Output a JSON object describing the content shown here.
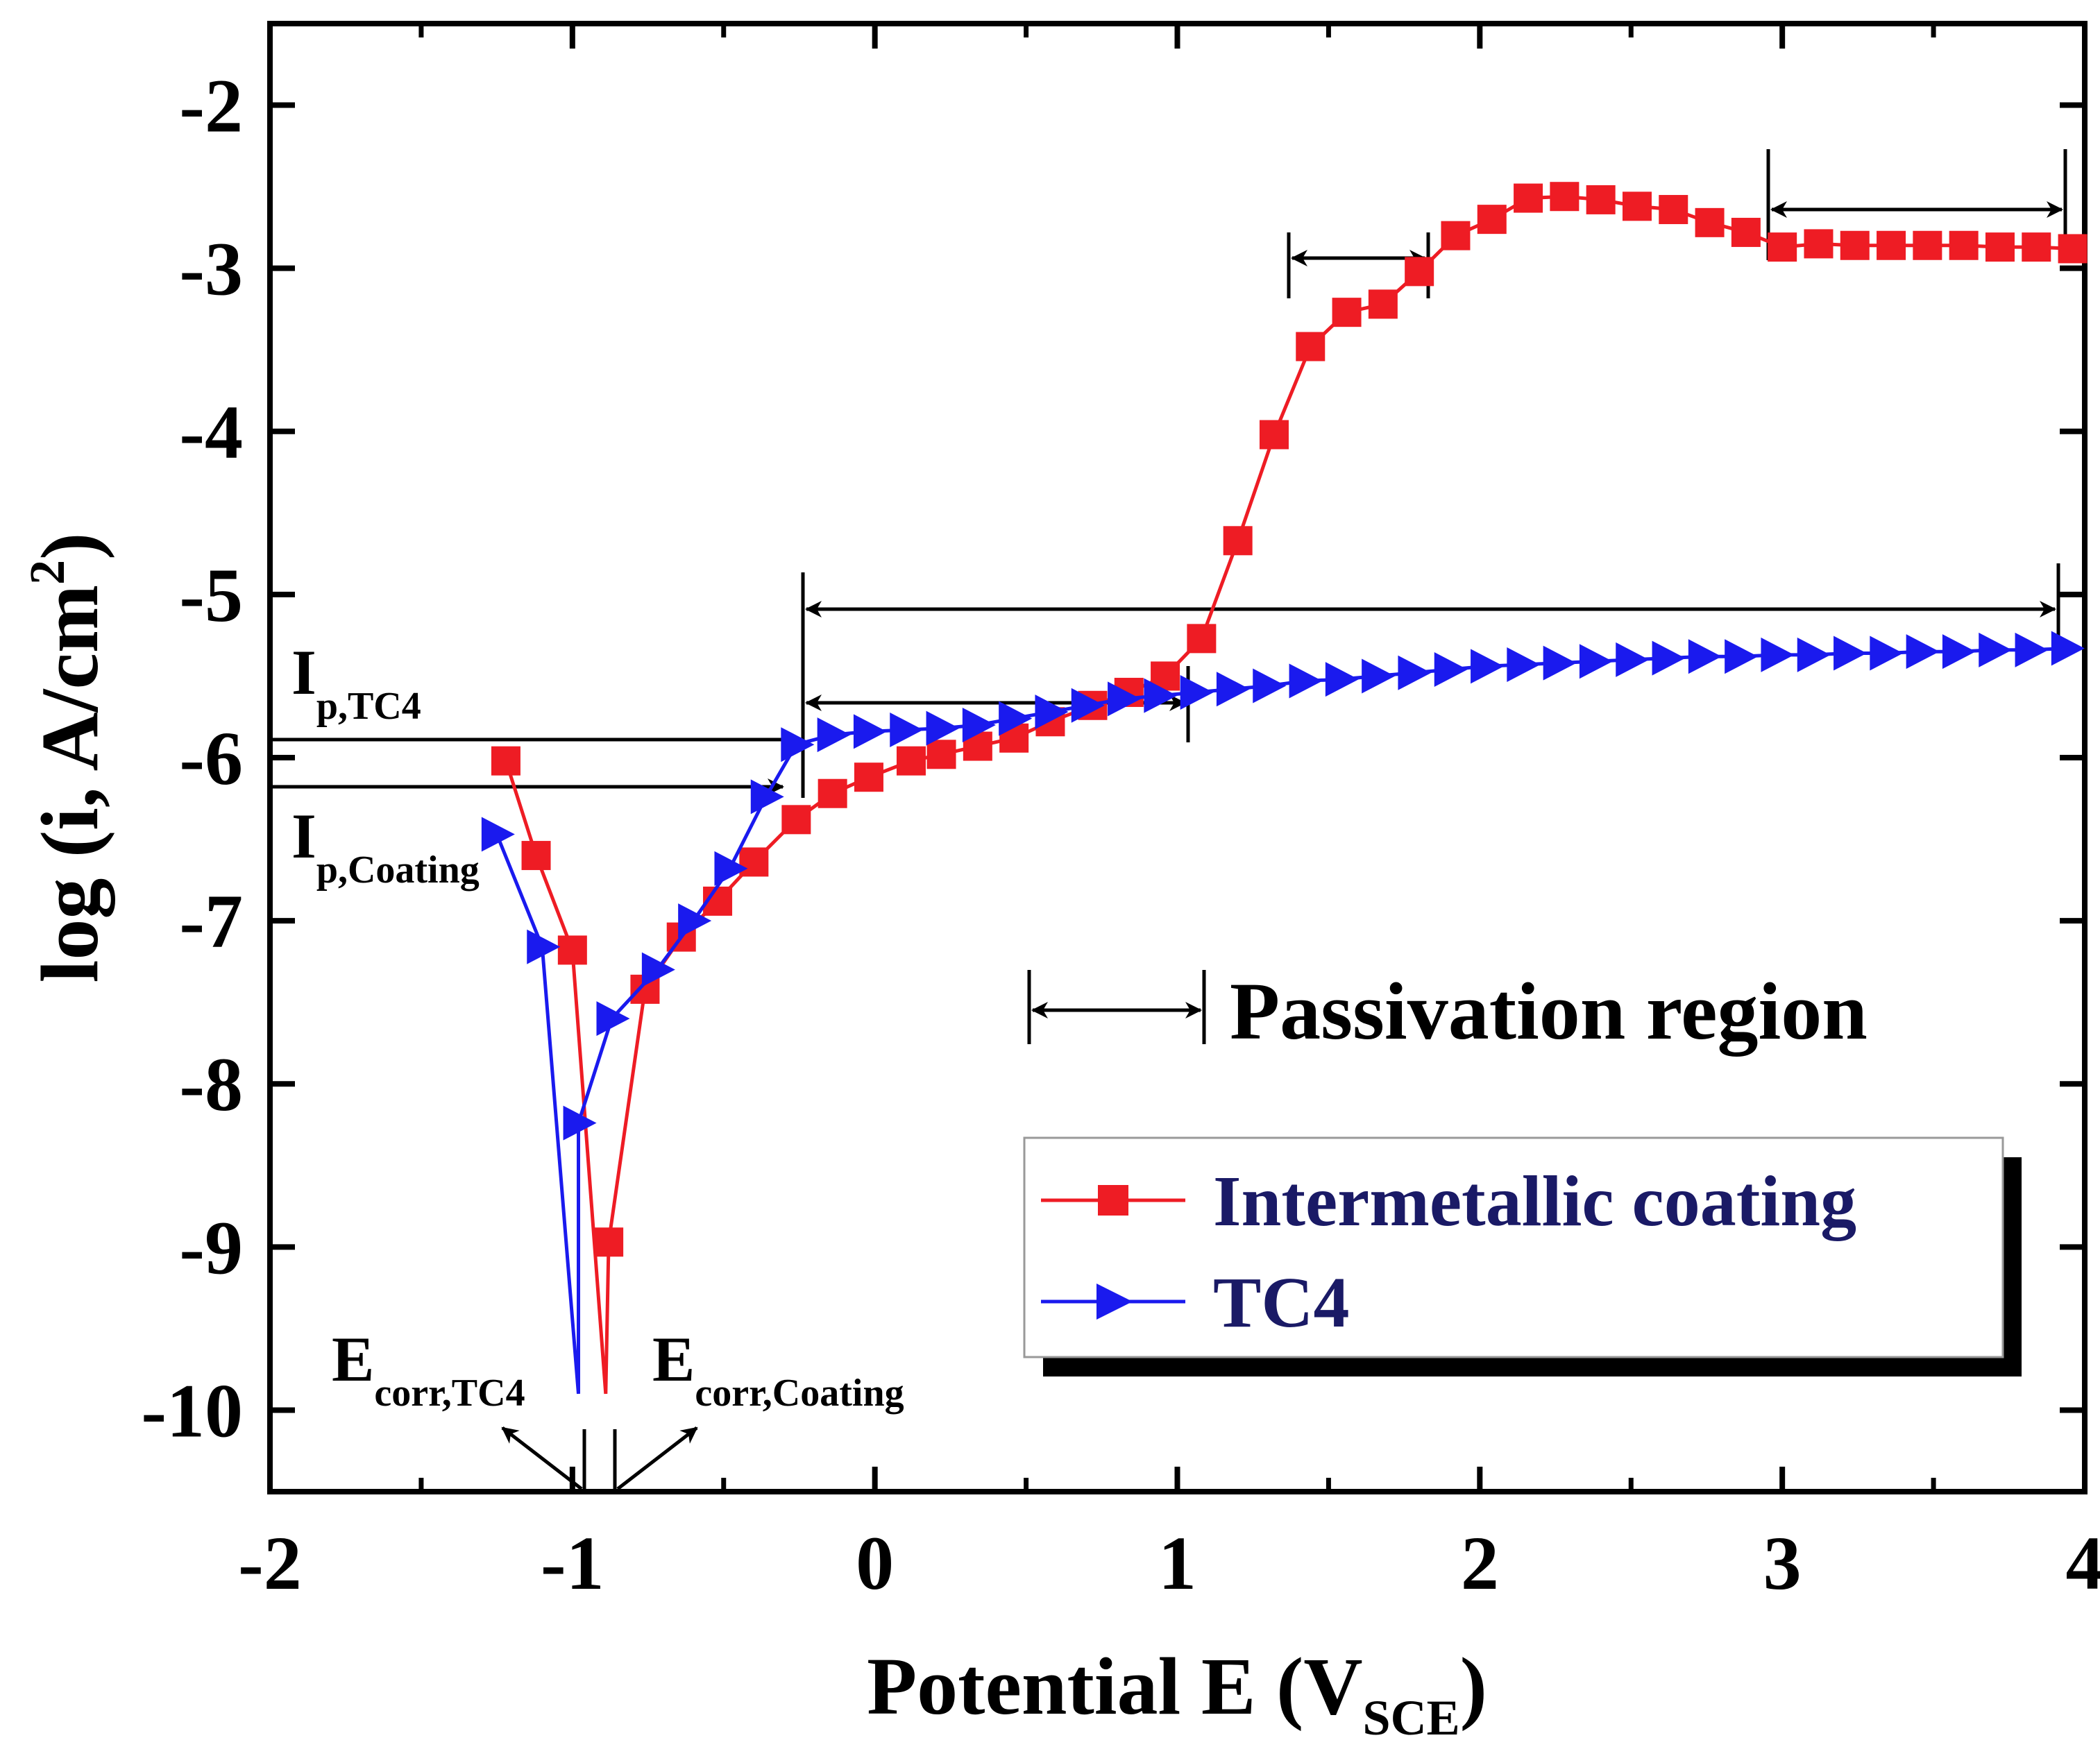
{
  "chart_data": {
    "type": "line",
    "title": "",
    "xlabel": {
      "main": "Potential E (V",
      "sub": "SCE",
      "close": ")"
    },
    "ylabel": {
      "main": "log (i, A/cm",
      "sup": "2",
      "close": ")"
    },
    "xlim": [
      -2,
      4
    ],
    "ylim": [
      -10.5,
      -1.5
    ],
    "xticks": [
      "-2",
      "-1",
      "0",
      "1",
      "2",
      "3",
      "4"
    ],
    "yticks": [
      "-2",
      "-3",
      "-4",
      "-5",
      "-6",
      "-7",
      "-8",
      "-9",
      "-10"
    ],
    "series": [
      {
        "name": "Intermetallic coating",
        "color": "#ee1c24",
        "marker": "square",
        "x": [
          -1.22,
          -1.12,
          -1.0,
          -0.88,
          -0.76,
          -0.64,
          -0.52,
          -0.4,
          -0.26,
          -0.14,
          -0.02,
          0.12,
          0.22,
          0.34,
          0.46,
          0.58,
          0.72,
          0.84,
          0.96,
          1.08,
          1.2,
          1.32,
          1.44,
          1.56,
          1.68,
          1.8,
          1.92,
          2.04,
          2.16,
          2.28,
          2.4,
          2.52,
          2.64,
          2.76,
          2.88,
          3.0,
          3.12,
          3.24,
          3.36,
          3.48,
          3.6,
          3.72,
          3.84,
          3.96
        ],
        "y": [
          -6.02,
          -6.6,
          -7.18,
          -8.97,
          -7.42,
          -7.1,
          -6.88,
          -6.64,
          -6.38,
          -6.22,
          -6.12,
          -6.02,
          -5.98,
          -5.93,
          -5.88,
          -5.78,
          -5.68,
          -5.6,
          -5.5,
          -5.27,
          -4.67,
          -4.02,
          -3.48,
          -3.27,
          -3.22,
          -3.02,
          -2.8,
          -2.7,
          -2.57,
          -2.56,
          -2.58,
          -2.62,
          -2.64,
          -2.72,
          -2.78,
          -2.87,
          -2.85,
          -2.86,
          -2.86,
          -2.86,
          -2.86,
          -2.87,
          -2.87,
          -2.88
        ]
      },
      {
        "name": "TC4",
        "color": "#1a1aee",
        "marker": "triangle-right",
        "x": [
          -1.25,
          -1.1,
          -0.98,
          -0.87,
          -0.72,
          -0.6,
          -0.48,
          -0.36,
          -0.26,
          -0.14,
          -0.02,
          0.1,
          0.22,
          0.34,
          0.46,
          0.58,
          0.7,
          0.82,
          0.94,
          1.06,
          1.18,
          1.3,
          1.42,
          1.54,
          1.66,
          1.78,
          1.9,
          2.02,
          2.14,
          2.26,
          2.38,
          2.5,
          2.62,
          2.74,
          2.86,
          2.98,
          3.1,
          3.22,
          3.34,
          3.46,
          3.58,
          3.7,
          3.82,
          3.94
        ],
        "y": [
          -6.47,
          -7.16,
          -8.24,
          -7.6,
          -7.3,
          -7.0,
          -6.68,
          -6.24,
          -5.92,
          -5.86,
          -5.84,
          -5.83,
          -5.82,
          -5.8,
          -5.76,
          -5.72,
          -5.68,
          -5.64,
          -5.62,
          -5.6,
          -5.58,
          -5.56,
          -5.53,
          -5.52,
          -5.5,
          -5.48,
          -5.46,
          -5.44,
          -5.43,
          -5.42,
          -5.41,
          -5.4,
          -5.39,
          -5.38,
          -5.38,
          -5.37,
          -5.37,
          -5.36,
          -5.36,
          -5.35,
          -5.35,
          -5.34,
          -5.34,
          -5.33
        ]
      }
    ],
    "legend": {
      "position": "bottom-right",
      "entries": [
        "Intermetallic coating",
        "TC4"
      ]
    },
    "annotations": {
      "ip_tc4": {
        "main": "I",
        "sub": "p,TC4"
      },
      "ip_coating": {
        "main": "I",
        "sub": "p,Coating"
      },
      "ecorr_tc4": {
        "main": "E",
        "sub": "corr,TC4"
      },
      "ecorr_coating": {
        "main": "E",
        "sub": "corr,Coating"
      },
      "passivation_label": "Passivation region"
    }
  }
}
